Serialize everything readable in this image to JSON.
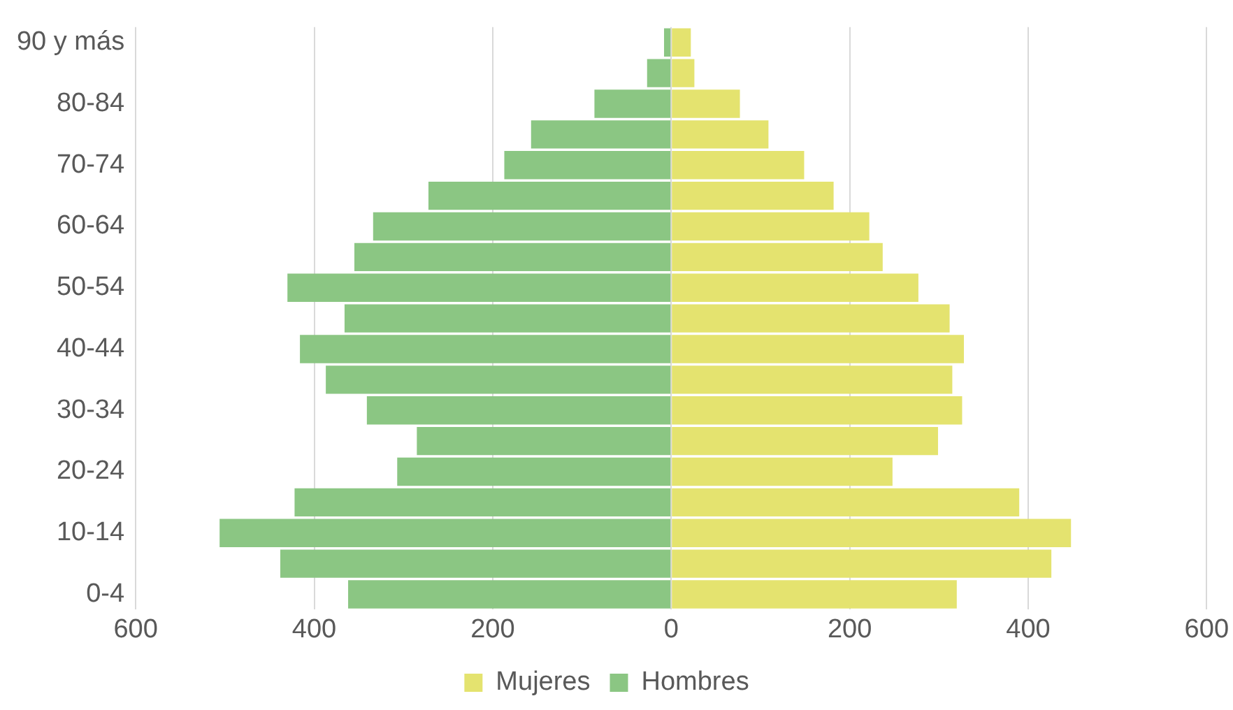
{
  "chart_data": {
    "type": "bar",
    "orientation": "horizontal",
    "stacked": true,
    "categories": [
      "90 y más",
      null,
      "80-84",
      null,
      "70-74",
      null,
      "60-64",
      null,
      "50-54",
      null,
      "40-44",
      null,
      "30-34",
      null,
      "20-24",
      null,
      "10-14",
      null,
      "0-4"
    ],
    "series": [
      {
        "name": "Mujeres",
        "color": "#e4e36f",
        "values": [
          22,
          26,
          77,
          109,
          149,
          182,
          222,
          237,
          277,
          312,
          328,
          315,
          326,
          299,
          248,
          390,
          448,
          426,
          320
        ]
      },
      {
        "name": "Hombres",
        "color": "#8bc683",
        "values": [
          -8,
          -27,
          -86,
          -157,
          -187,
          -272,
          -334,
          -355,
          -430,
          -366,
          -416,
          -387,
          -341,
          -285,
          -307,
          -422,
          -506,
          -438,
          -362
        ]
      }
    ],
    "xlim": [
      -600,
      600
    ],
    "xticks": [
      {
        "value": -600,
        "label": "600"
      },
      {
        "value": -400,
        "label": "400"
      },
      {
        "value": -200,
        "label": "200"
      },
      0,
      200,
      400,
      600
    ],
    "grid": "x",
    "legend": "bottom"
  }
}
